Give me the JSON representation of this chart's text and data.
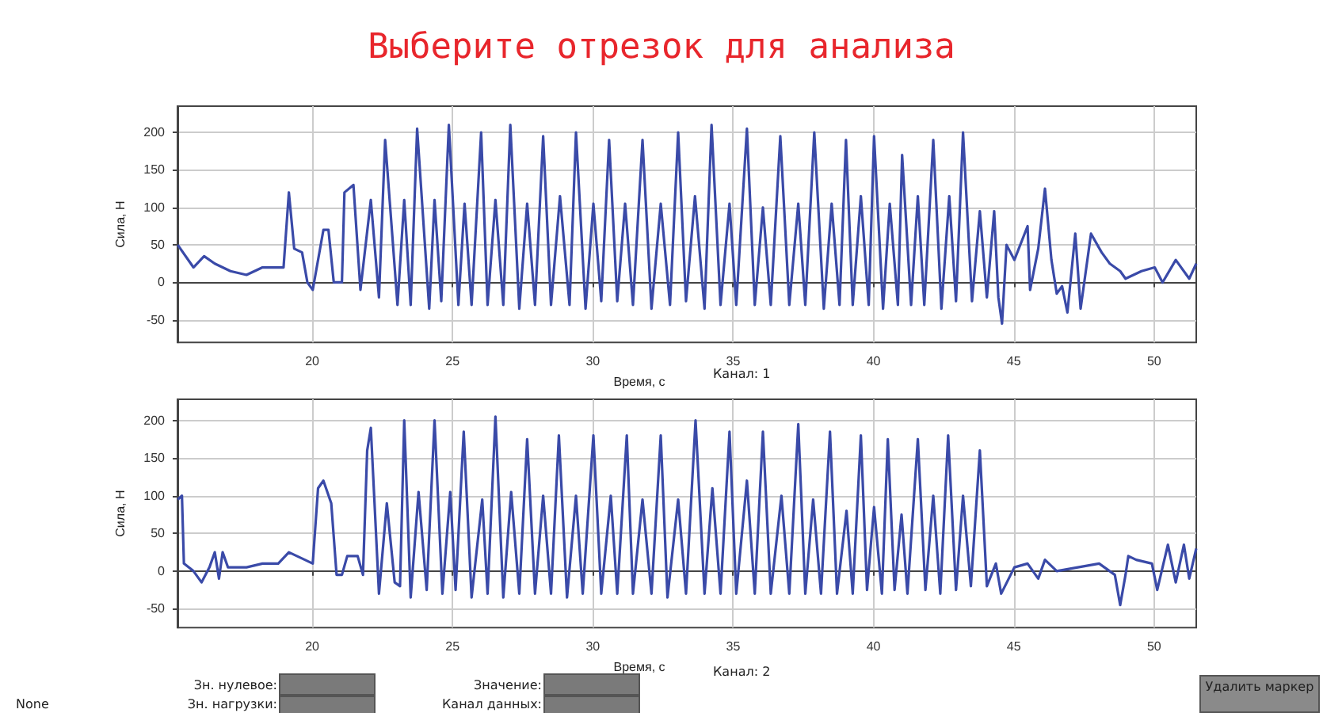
{
  "chart_data": [
    {
      "type": "line",
      "title": "Выберите отрезок для анализа",
      "xlabel": "Время, с",
      "ylabel": "Сила, Н",
      "annotations": [
        "Канал: 1"
      ],
      "xlim": [
        15.2,
        51.5
      ],
      "ylim": [
        -80,
        235
      ],
      "xticks": [
        20,
        25,
        30,
        35,
        40,
        45,
        50
      ],
      "yticks": [
        -50,
        0,
        50,
        100,
        150,
        200
      ],
      "grid": true,
      "marker": "none",
      "line_style": "solid",
      "series": [
        {
          "color": "#3a4aa8",
          "x": [
            15.21,
            15.77,
            16.15,
            16.53,
            17.09,
            17.66,
            18.23,
            18.98,
            19.17,
            19.36,
            19.64,
            19.83,
            20.02,
            20.4,
            20.58,
            20.77,
            21.06,
            21.15,
            21.47,
            21.72,
            22.09,
            22.38,
            22.6,
            23.04,
            23.28,
            23.51,
            23.74,
            24.17,
            24.36,
            24.6,
            24.87,
            25.21,
            25.43,
            25.68,
            26.02,
            26.25,
            26.53,
            26.81,
            27.06,
            27.38,
            27.66,
            27.94,
            28.23,
            28.51,
            28.83,
            29.17,
            29.4,
            29.74,
            30.02,
            30.3,
            30.58,
            30.87,
            31.15,
            31.43,
            31.77,
            32.09,
            32.42,
            32.75,
            33.04,
            33.32,
            33.64,
            33.98,
            34.23,
            34.55,
            34.87,
            35.11,
            35.49,
            35.77,
            36.06,
            36.34,
            36.68,
            37.0,
            37.32,
            37.57,
            37.89,
            38.23,
            38.51,
            38.79,
            39.02,
            39.26,
            39.55,
            39.83,
            40.02,
            40.34,
            40.58,
            40.87,
            41.02,
            41.34,
            41.58,
            41.81,
            42.13,
            42.42,
            42.7,
            42.94,
            43.19,
            43.51,
            43.79,
            44.04,
            44.3,
            44.45,
            44.58,
            44.74,
            45.02,
            45.49,
            45.58,
            45.87,
            46.11,
            46.34,
            46.53,
            46.72,
            46.91,
            47.19,
            47.38,
            47.75,
            48.13,
            48.42,
            48.79,
            48.98,
            49.55,
            50.02,
            50.3,
            50.77,
            51.25,
            51.5
          ],
          "values": [
            50,
            20,
            35,
            25,
            15,
            10,
            20,
            20,
            120,
            45,
            40,
            0,
            -10,
            70,
            70,
            0,
            0,
            120,
            130,
            -10,
            110,
            -20,
            190,
            -30,
            110,
            -30,
            205,
            -35,
            110,
            -25,
            210,
            -30,
            105,
            -30,
            200,
            -30,
            110,
            -30,
            210,
            -35,
            105,
            -30,
            195,
            -30,
            115,
            -30,
            200,
            -35,
            105,
            -25,
            190,
            -25,
            105,
            -30,
            190,
            -35,
            105,
            -30,
            200,
            -25,
            115,
            -35,
            210,
            -30,
            105,
            -30,
            205,
            -30,
            100,
            -30,
            195,
            -30,
            105,
            -30,
            200,
            -35,
            105,
            -30,
            190,
            -30,
            115,
            -30,
            195,
            -35,
            105,
            -30,
            170,
            -30,
            115,
            -30,
            190,
            -35,
            115,
            -25,
            200,
            -25,
            95,
            -20,
            95,
            -20,
            -55,
            50,
            30,
            75,
            -10,
            45,
            125,
            30,
            -15,
            -5,
            -40,
            65,
            -35,
            65,
            40,
            25,
            15,
            5,
            15,
            20,
            0,
            30,
            5,
            25
          ]
        }
      ]
    },
    {
      "type": "line",
      "xlabel": "Время, с",
      "ylabel": "Сила, Н",
      "annotations": [
        "Канал: 2"
      ],
      "xlim": [
        15.2,
        51.5
      ],
      "ylim": [
        -75,
        228
      ],
      "xticks": [
        20,
        25,
        30,
        35,
        40,
        45,
        50
      ],
      "yticks": [
        -50,
        0,
        50,
        100,
        150,
        200
      ],
      "grid": true,
      "marker": "none",
      "line_style": "solid",
      "series": [
        {
          "color": "#3a4aa8",
          "x": [
            15.21,
            15.36,
            15.43,
            15.77,
            16.06,
            16.34,
            16.53,
            16.68,
            16.81,
            17.0,
            17.66,
            18.23,
            18.79,
            19.17,
            19.74,
            20.02,
            20.21,
            20.4,
            20.68,
            20.87,
            21.06,
            21.25,
            21.62,
            21.81,
            21.96,
            22.09,
            22.38,
            22.66,
            22.94,
            23.13,
            23.28,
            23.51,
            23.79,
            24.08,
            24.36,
            24.64,
            24.92,
            25.11,
            25.4,
            25.68,
            26.06,
            26.25,
            26.53,
            26.81,
            27.09,
            27.38,
            27.66,
            27.94,
            28.23,
            28.51,
            28.79,
            29.08,
            29.4,
            29.64,
            30.02,
            30.3,
            30.64,
            30.87,
            31.21,
            31.43,
            31.77,
            32.09,
            32.42,
            32.66,
            33.04,
            33.32,
            33.66,
            33.98,
            34.26,
            34.55,
            34.87,
            35.11,
            35.49,
            35.77,
            36.06,
            36.34,
            36.72,
            37.0,
            37.32,
            37.57,
            37.85,
            38.13,
            38.45,
            38.7,
            39.04,
            39.26,
            39.55,
            39.77,
            40.02,
            40.3,
            40.51,
            40.75,
            41.0,
            41.21,
            41.58,
            41.85,
            42.13,
            42.38,
            42.66,
            42.94,
            43.19,
            43.47,
            43.79,
            44.04,
            44.36,
            44.55,
            45.02,
            45.49,
            45.87,
            46.11,
            46.53,
            47.28,
            48.04,
            48.6,
            48.79,
            48.98,
            49.08,
            49.36,
            49.92,
            50.11,
            50.49,
            50.77,
            51.06,
            51.25,
            51.5
          ],
          "values": [
            95,
            100,
            10,
            0,
            -15,
            5,
            25,
            -10,
            25,
            5,
            5,
            10,
            10,
            25,
            15,
            10,
            110,
            120,
            90,
            -5,
            -5,
            20,
            20,
            -5,
            160,
            190,
            -30,
            90,
            -15,
            -20,
            200,
            -35,
            105,
            -25,
            200,
            -30,
            105,
            -25,
            185,
            -35,
            95,
            -30,
            205,
            -35,
            105,
            -30,
            175,
            -30,
            100,
            -30,
            180,
            -35,
            100,
            -30,
            180,
            -30,
            100,
            -30,
            180,
            -30,
            95,
            -30,
            180,
            -35,
            95,
            -30,
            200,
            -30,
            110,
            -30,
            185,
            -30,
            120,
            -30,
            185,
            -30,
            100,
            -30,
            195,
            -30,
            95,
            -30,
            185,
            -30,
            80,
            -30,
            180,
            -25,
            85,
            -30,
            175,
            -25,
            75,
            -30,
            175,
            -25,
            100,
            -30,
            180,
            -25,
            100,
            -20,
            160,
            -20,
            10,
            -30,
            5,
            10,
            -10,
            15,
            0,
            5,
            10,
            -5,
            -45,
            -5,
            20,
            15,
            10,
            -25,
            35,
            -15,
            35,
            -10,
            30
          ]
        }
      ]
    },
    {
      "type": "other",
      "annotations": [
        "Зн. нулевое:",
        "Зн. нагрузки:",
        "Значение:",
        "Канал данных:",
        "Удалить маркер",
        "None"
      ]
    }
  ]
}
